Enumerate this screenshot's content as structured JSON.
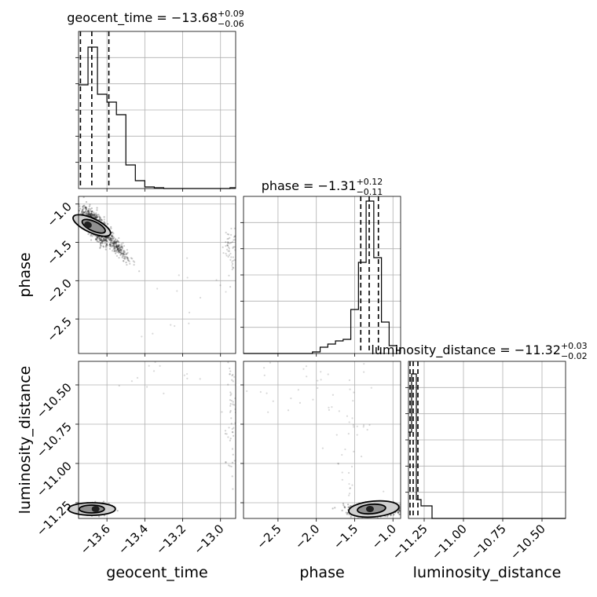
{
  "chart_data": {
    "type": "corner",
    "parameters": [
      "geocent_time",
      "phase",
      "luminosity_distance"
    ],
    "axis_labels": {
      "geocent_time": "geocent_time",
      "phase": "phase",
      "luminosity_distance": "luminosity_distance"
    },
    "ranges": {
      "geocent_time": [
        -13.75,
        -12.92
      ],
      "phase": [
        -2.95,
        -0.9
      ],
      "luminosity_distance": [
        -11.35,
        -10.35
      ]
    },
    "ticks": {
      "geocent_time": [
        {
          "v": -13.6,
          "label": "−13.6"
        },
        {
          "v": -13.4,
          "label": "−13.4"
        },
        {
          "v": -13.2,
          "label": "−13.2"
        },
        {
          "v": -13.0,
          "label": "−13.0"
        }
      ],
      "phase": [
        {
          "v": -2.5,
          "label": "−2.5"
        },
        {
          "v": -2.0,
          "label": "−2.0"
        },
        {
          "v": -1.5,
          "label": "−1.5"
        },
        {
          "v": -1.0,
          "label": "−1.0"
        }
      ],
      "luminosity_distance": [
        {
          "v": -11.25,
          "label": "−11.25"
        },
        {
          "v": -11.0,
          "label": "−11.00"
        },
        {
          "v": -10.75,
          "label": "−10.75"
        },
        {
          "v": -10.5,
          "label": "−10.50"
        }
      ]
    },
    "titles": {
      "geocent_time": {
        "prefix": "geocent_time = −13.68",
        "sup": "+0.09",
        "sub": "−0.06"
      },
      "phase": {
        "prefix": "phase = −1.31",
        "sup": "+0.12",
        "sub": "−0.11"
      },
      "luminosity_distance": {
        "prefix": "luminosity_distance = −11.32",
        "sup": "+0.03",
        "sub": "−0.02"
      }
    },
    "quantiles": {
      "geocent_time": [
        -13.74,
        -13.68,
        -13.59
      ],
      "phase": [
        -1.42,
        -1.31,
        -1.19
      ],
      "luminosity_distance": [
        -11.34,
        -11.32,
        -11.29
      ]
    },
    "histograms": {
      "geocent_time": {
        "edges": [
          -13.75,
          -13.7,
          -13.65,
          -13.6,
          -13.55,
          -13.5,
          -13.45,
          -13.4,
          -13.35,
          -13.3,
          -13.25,
          -13.2,
          -13.15,
          -13.1,
          -13.05,
          -13.0,
          -12.95,
          -12.92
        ],
        "counts": [
          0.66,
          0.9,
          0.6,
          0.55,
          0.47,
          0.15,
          0.05,
          0.01,
          0.005,
          0.0,
          0.0,
          0.0,
          0.0,
          0.0,
          0.0,
          0.0,
          0.005
        ]
      },
      "phase": {
        "edges": [
          -2.95,
          -2.05,
          -1.95,
          -1.85,
          -1.75,
          -1.65,
          -1.55,
          -1.45,
          -1.35,
          -1.25,
          -1.15,
          -1.05,
          -0.95,
          -0.9
        ],
        "counts": [
          0.0,
          0.01,
          0.04,
          0.06,
          0.08,
          0.09,
          0.28,
          0.58,
          0.97,
          0.61,
          0.2,
          0.05,
          0.02
        ]
      },
      "luminosity_distance": {
        "edges": [
          -11.35,
          -11.33,
          -11.3,
          -11.27,
          -11.2,
          -10.35
        ],
        "counts": [
          0.55,
          0.92,
          0.12,
          0.08,
          0.0
        ]
      }
    }
  }
}
